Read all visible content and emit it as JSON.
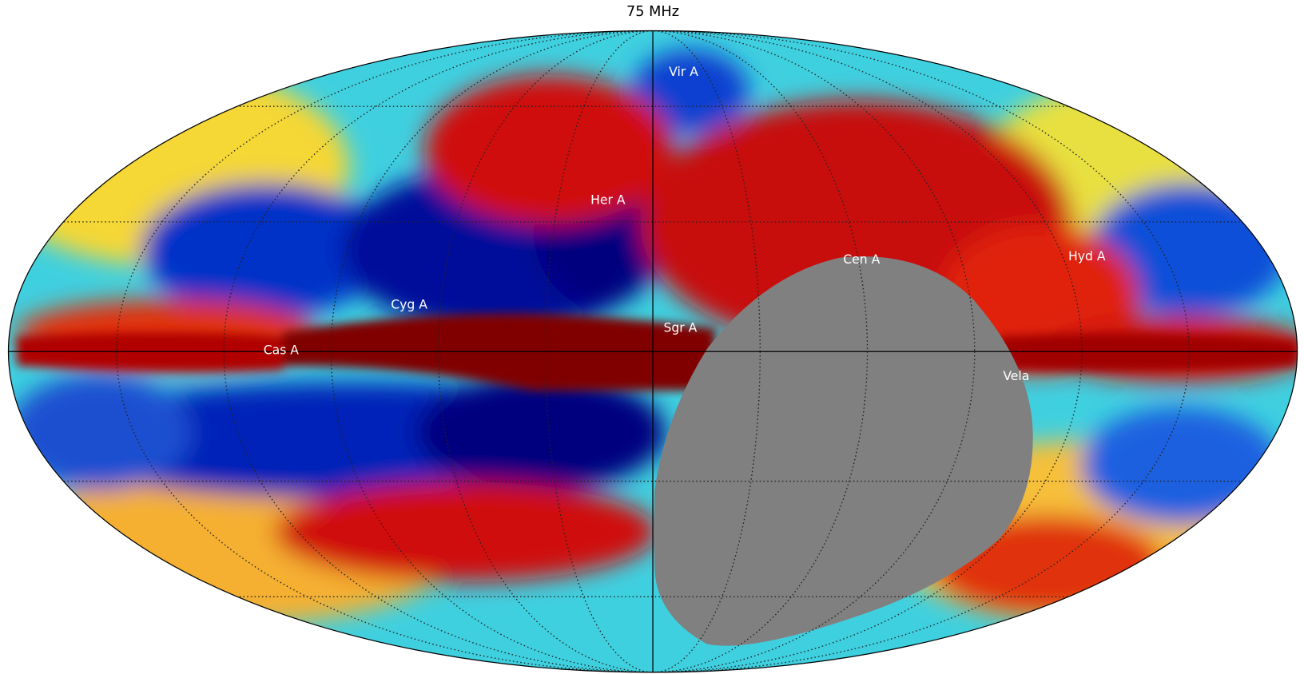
{
  "title": "75 MHz",
  "sources": [
    {
      "label": "Vir A"
    },
    {
      "label": "Her A"
    },
    {
      "label": "Cen A"
    },
    {
      "label": "Hyd A"
    },
    {
      "label": "Cyg A"
    },
    {
      "label": "Sgr A"
    },
    {
      "label": "Cas A"
    },
    {
      "label": "Vela"
    }
  ]
}
